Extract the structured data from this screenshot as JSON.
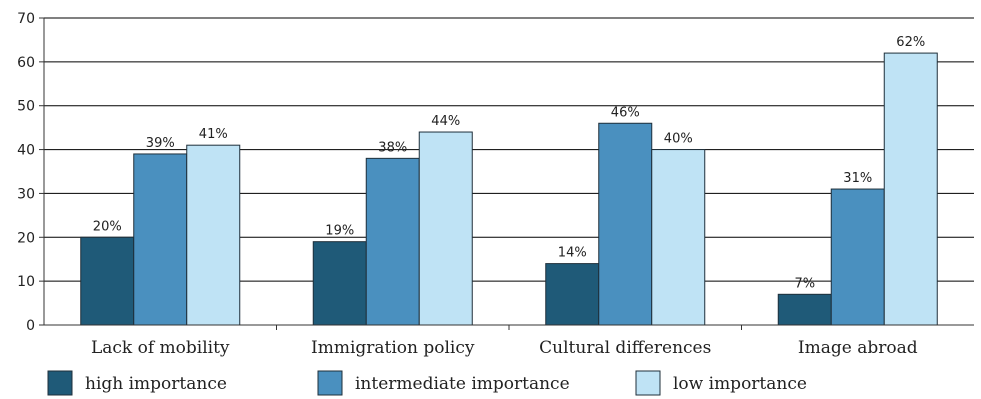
{
  "chart_data": {
    "type": "bar",
    "categories": [
      "Lack of mobility",
      "Immigration policy",
      "Cultural differences",
      "Image abroad"
    ],
    "series": [
      {
        "name": "high importance",
        "values": [
          20,
          19,
          14,
          7
        ],
        "labels": [
          "20%",
          "19%",
          "14%",
          "7%"
        ],
        "color": "#1f5a78"
      },
      {
        "name": "intermediate importance",
        "values": [
          39,
          38,
          46,
          31
        ],
        "labels": [
          "39%",
          "38%",
          "46%",
          "31%"
        ],
        "color": "#4a90bf"
      },
      {
        "name": "low importance",
        "values": [
          41,
          44,
          40,
          62
        ],
        "labels": [
          "41%",
          "44%",
          "40%",
          "62%"
        ],
        "color": "#bfe3f5"
      }
    ],
    "title": "",
    "xlabel": "",
    "ylabel": "",
    "ylim": [
      0,
      70
    ],
    "yticks": [
      0,
      10,
      20,
      30,
      40,
      50,
      60,
      70
    ],
    "grid": true,
    "legend": "bottom"
  }
}
